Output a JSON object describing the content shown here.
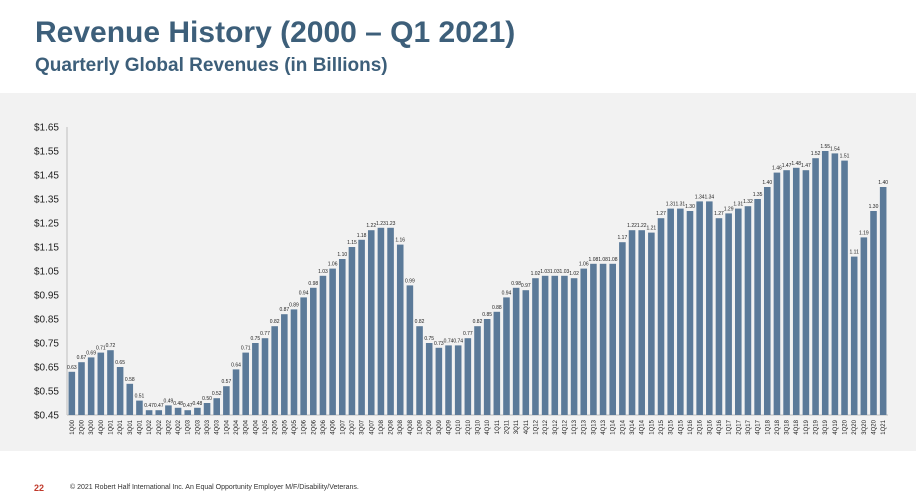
{
  "title": "Revenue History (2000 – Q1 2021)",
  "subtitle": "Quarterly Global Revenues (in Billions)",
  "footer": {
    "page_number": "22",
    "copyright": "© 2021 Robert Half International Inc. An Equal Opportunity Employer M/F/Disability/Veterans."
  },
  "chart_data": {
    "type": "bar",
    "title": "",
    "xlabel": "",
    "ylabel": "",
    "ylim": [
      0.45,
      1.65
    ],
    "yticks": [
      "$0.45",
      "$0.55",
      "$0.65",
      "$0.75",
      "$0.85",
      "$0.95",
      "$1.05",
      "$1.15",
      "$1.25",
      "$1.35",
      "$1.45",
      "$1.55",
      "$1.65"
    ],
    "bar_color": "#5b7a99",
    "grid": false,
    "categories": [
      "1Q00",
      "2Q00",
      "3Q00",
      "4Q00",
      "1Q01",
      "2Q01",
      "3Q01",
      "4Q01",
      "1Q02",
      "2Q02",
      "3Q02",
      "4Q02",
      "1Q03",
      "2Q03",
      "3Q03",
      "4Q03",
      "1Q04",
      "2Q04",
      "3Q04",
      "4Q04",
      "1Q05",
      "2Q05",
      "3Q05",
      "4Q05",
      "1Q06",
      "2Q06",
      "3Q06",
      "4Q06",
      "1Q07",
      "2Q07",
      "3Q07",
      "4Q07",
      "1Q08",
      "2Q08",
      "3Q08",
      "4Q08",
      "1Q09",
      "2Q09",
      "3Q09",
      "4Q09",
      "1Q10",
      "2Q10",
      "3Q10",
      "4Q10",
      "1Q11",
      "2Q11",
      "3Q11",
      "4Q11",
      "1Q12",
      "2Q12",
      "3Q12",
      "4Q12",
      "1Q13",
      "2Q13",
      "3Q13",
      "4Q13",
      "1Q14",
      "2Q14",
      "3Q14",
      "4Q14",
      "1Q15",
      "2Q15",
      "3Q15",
      "4Q15",
      "1Q16",
      "2Q16",
      "3Q16",
      "4Q16",
      "1Q17",
      "2Q17",
      "3Q17",
      "4Q17",
      "1Q18",
      "2Q18",
      "3Q18",
      "4Q18",
      "1Q19",
      "2Q19",
      "3Q19",
      "4Q19",
      "1Q20",
      "2Q20",
      "3Q20",
      "4Q20",
      "1Q21"
    ],
    "values": [
      0.63,
      0.67,
      0.69,
      0.71,
      0.72,
      0.65,
      0.58,
      0.51,
      0.47,
      0.47,
      0.49,
      0.48,
      0.47,
      0.48,
      0.5,
      0.52,
      0.57,
      0.64,
      0.71,
      0.75,
      0.77,
      0.82,
      0.87,
      0.89,
      0.94,
      0.98,
      1.03,
      1.06,
      1.1,
      1.15,
      1.18,
      1.22,
      1.23,
      1.23,
      1.16,
      0.99,
      0.82,
      0.75,
      0.73,
      0.74,
      0.74,
      0.77,
      0.82,
      0.85,
      0.88,
      0.94,
      0.98,
      0.97,
      1.02,
      1.03,
      1.03,
      1.03,
      1.02,
      1.06,
      1.08,
      1.08,
      1.08,
      1.17,
      1.22,
      1.22,
      1.21,
      1.27,
      1.31,
      1.31,
      1.3,
      1.34,
      1.34,
      1.27,
      1.29,
      1.31,
      1.32,
      1.35,
      1.4,
      1.46,
      1.47,
      1.48,
      1.47,
      1.52,
      1.55,
      1.54,
      1.51,
      1.11,
      1.19,
      1.3,
      1.4
    ],
    "data_labels": [
      "0.63",
      "0.67",
      "0.69",
      "0.71",
      "0.72",
      "0.65",
      "0.58",
      "0.51",
      "0.47",
      "0.47",
      "0.49",
      "0.48",
      "0.47",
      "0.48",
      "0.50",
      "0.52",
      "0.57",
      "0.64",
      "0.71",
      "0.75",
      "0.77",
      "0.82",
      "0.87",
      "0.89",
      "0.94",
      "0.98",
      "1.03",
      "1.06",
      "1.10",
      "1.15",
      "1.18",
      "1.22",
      "1.23",
      "1.23",
      "1.16",
      "0.99",
      "0.82",
      "0.75",
      "0.73",
      "0.74",
      "0.74",
      "0.77",
      "0.82",
      "0.85",
      "0.88",
      "0.94",
      "0.98",
      "0.97",
      "1.02",
      "1.03",
      "1.03",
      "1.03",
      "1.02",
      "1.06",
      "1.08",
      "1.08",
      "1.08",
      "1.17",
      "1.22",
      "1.22",
      "1.21",
      "1.27",
      "1.31",
      "1.31",
      "1.30",
      "1.34",
      "1.34",
      "1.27",
      "1.29",
      "1.31",
      "1.32",
      "1.35",
      "1.40",
      "1.46",
      "1.47",
      "1.48",
      "1.47",
      "1.52",
      "1.55",
      "1.54",
      "1.51",
      "1.11",
      "1.19",
      "1.30",
      "1.40"
    ]
  }
}
